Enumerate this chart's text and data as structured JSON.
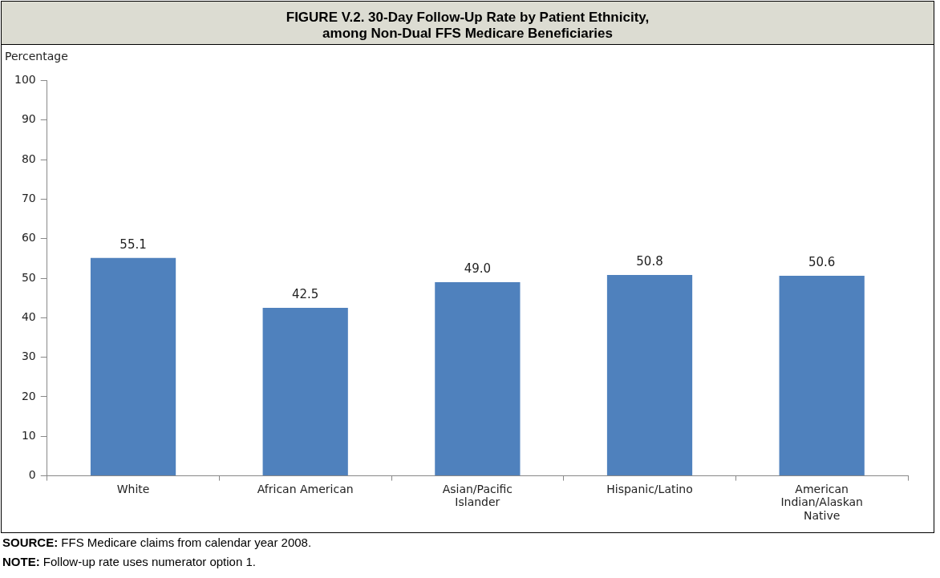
{
  "chart_data": {
    "type": "bar",
    "title": "FIGURE V.2. 30-Day Follow-Up Rate by Patient Ethnicity,\namong Non-Dual FFS Medicare Beneficiaries",
    "ylabel": "Percentage",
    "categories": [
      "White",
      "African American",
      "Asian/Pacific Islander",
      "Hispanic/Latino",
      "American Indian/Alaskan Native"
    ],
    "values": [
      55.1,
      42.5,
      49.0,
      50.8,
      50.6
    ],
    "value_labels": [
      "55.1",
      "42.5",
      "49.0",
      "50.8",
      "50.6"
    ],
    "color": "#4f81bd",
    "ylim": [
      0,
      100
    ],
    "yticks": [
      0,
      10,
      20,
      30,
      40,
      50,
      60,
      70,
      80,
      90,
      100
    ],
    "grid": false,
    "legend": false,
    "annotations": [
      "SOURCE:  FFS Medicare claims from calendar year 2008.",
      "NOTE:  Follow-up rate uses numerator option 1."
    ]
  }
}
